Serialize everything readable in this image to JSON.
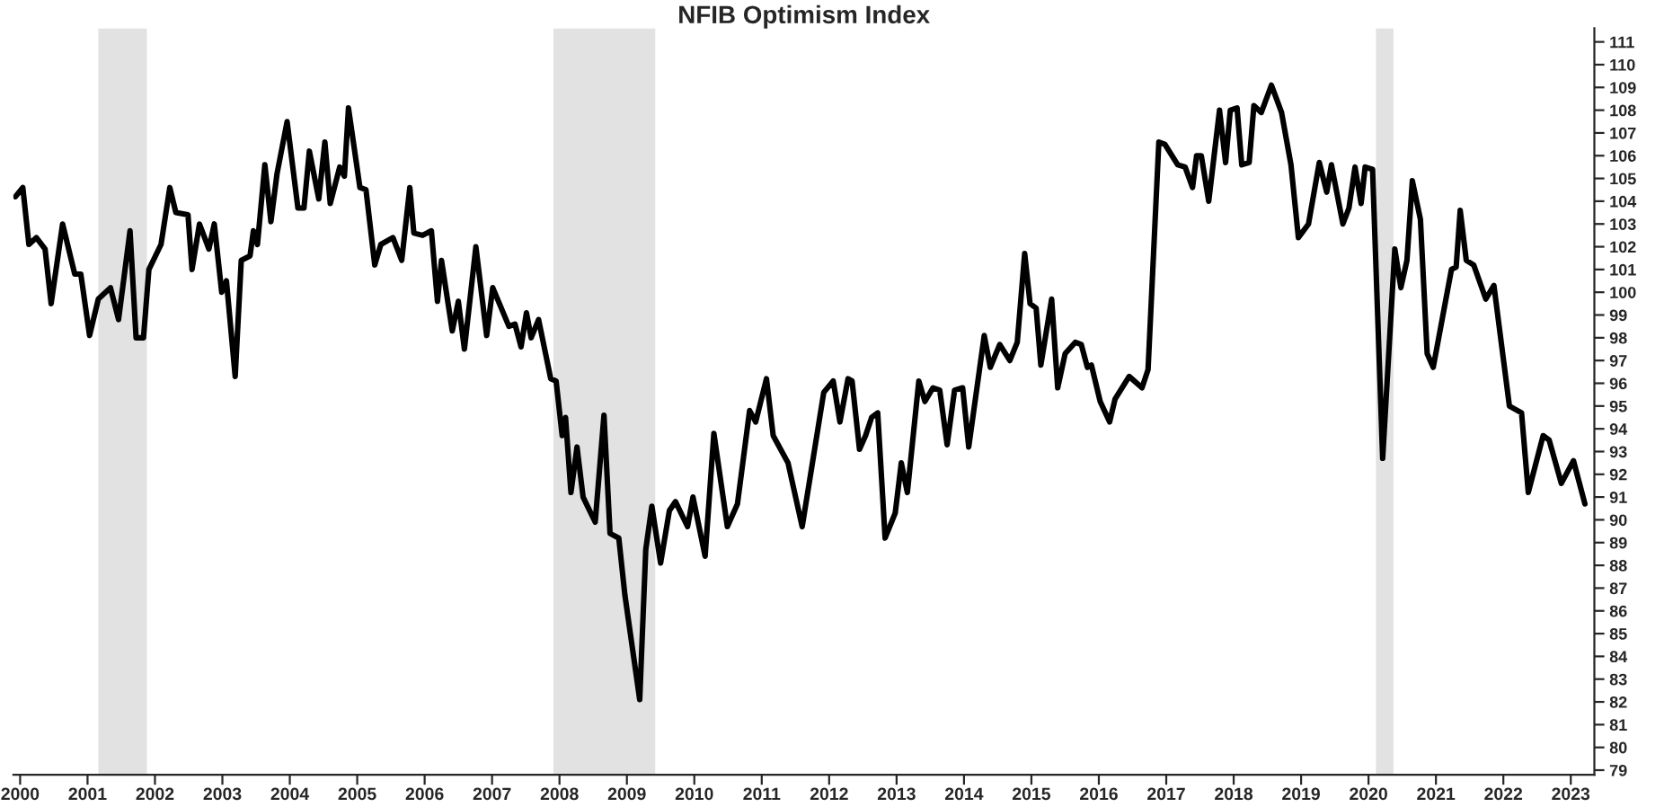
{
  "chart_data": {
    "type": "line",
    "title": "NFIB Optimism Index",
    "xlim": [
      1999.9,
      2023.35
    ],
    "xticks": [
      2000,
      2001,
      2002,
      2003,
      2004,
      2005,
      2006,
      2007,
      2008,
      2009,
      2010,
      2011,
      2012,
      2013,
      2014,
      2015,
      2016,
      2017,
      2018,
      2019,
      2020,
      2021,
      2022,
      2023
    ],
    "ylim": [
      78.8,
      111.6
    ],
    "yticks": [
      79,
      80,
      81,
      82,
      83,
      84,
      85,
      86,
      87,
      88,
      89,
      90,
      91,
      92,
      93,
      94,
      95,
      96,
      97,
      98,
      99,
      100,
      101,
      102,
      103,
      104,
      105,
      106,
      107,
      108,
      109,
      110,
      111
    ],
    "grid": false,
    "legend": false,
    "marker": "none",
    "line_style": "solid",
    "bands": [
      {
        "axis": "x",
        "from": 2001.16,
        "to": 2001.88,
        "color": "#e2e2e2"
      },
      {
        "axis": "x",
        "from": 2007.91,
        "to": 2009.42,
        "color": "#e2e2e2"
      },
      {
        "axis": "x",
        "from": 2020.11,
        "to": 2020.37,
        "color": "#e2e2e2"
      }
    ],
    "series": [
      {
        "color": "#000000",
        "x": [
          1999.93,
          2000.04,
          2000.13,
          2000.24,
          2000.37,
          2000.46,
          2000.63,
          2000.81,
          2000.9,
          2001.03,
          2001.16,
          2001.34,
          2001.46,
          2001.63,
          2001.72,
          2001.83,
          2001.91,
          2002.09,
          2002.22,
          2002.31,
          2002.49,
          2002.55,
          2002.66,
          2002.8,
          2002.88,
          2002.99,
          2003.06,
          2003.19,
          2003.28,
          2003.41,
          2003.46,
          2003.52,
          2003.63,
          2003.72,
          2003.81,
          2003.96,
          2004.12,
          2004.21,
          2004.29,
          2004.43,
          2004.52,
          2004.6,
          2004.74,
          2004.81,
          2004.87,
          2005.04,
          2005.13,
          2005.26,
          2005.35,
          2005.53,
          2005.66,
          2005.78,
          2005.84,
          2005.97,
          2006.1,
          2006.19,
          2006.25,
          2006.41,
          2006.5,
          2006.59,
          2006.76,
          2006.92,
          2007.01,
          2007.25,
          2007.34,
          2007.43,
          2007.51,
          2007.58,
          2007.69,
          2007.87,
          2007.95,
          2008.04,
          2008.09,
          2008.17,
          2008.26,
          2008.35,
          2008.53,
          2008.66,
          2008.75,
          2008.88,
          2008.97,
          2009.19,
          2009.28,
          2009.37,
          2009.5,
          2009.63,
          2009.72,
          2009.9,
          2009.98,
          2010.16,
          2010.29,
          2010.49,
          2010.64,
          2010.82,
          2010.91,
          2011.07,
          2011.17,
          2011.39,
          2011.6,
          2011.92,
          2012.06,
          2012.16,
          2012.28,
          2012.34,
          2012.45,
          2012.54,
          2012.63,
          2012.72,
          2012.83,
          2012.98,
          2013.07,
          2013.16,
          2013.33,
          2013.42,
          2013.54,
          2013.64,
          2013.75,
          2013.86,
          2013.98,
          2014.07,
          2014.3,
          2014.39,
          2014.53,
          2014.68,
          2014.79,
          2014.9,
          2014.98,
          2015.07,
          2015.14,
          2015.3,
          2015.39,
          2015.5,
          2015.65,
          2015.74,
          2015.83,
          2015.89,
          2016.02,
          2016.16,
          2016.24,
          2016.45,
          2016.64,
          2016.73,
          2016.89,
          2016.98,
          2017.17,
          2017.28,
          2017.39,
          2017.45,
          2017.52,
          2017.63,
          2017.79,
          2017.88,
          2017.95,
          2018.05,
          2018.12,
          2018.23,
          2018.3,
          2018.41,
          2018.56,
          2018.71,
          2018.85,
          2018.96,
          2019.11,
          2019.27,
          2019.38,
          2019.45,
          2019.62,
          2019.71,
          2019.8,
          2019.89,
          2019.95,
          2020.06,
          2020.21,
          2020.39,
          2020.48,
          2020.57,
          2020.65,
          2020.77,
          2020.87,
          2020.96,
          2021.23,
          2021.3,
          2021.36,
          2021.45,
          2021.56,
          2021.74,
          2021.86,
          2022.09,
          2022.27,
          2022.37,
          2022.59,
          2022.68,
          2022.86,
          2023.04,
          2023.21
        ],
        "values": [
          104.2,
          104.6,
          102.1,
          102.4,
          101.9,
          99.5,
          103.0,
          100.8,
          100.8,
          98.1,
          99.7,
          100.2,
          98.8,
          102.7,
          98.0,
          98.0,
          101.0,
          102.1,
          104.6,
          103.5,
          103.4,
          101.0,
          103.0,
          101.9,
          103.0,
          100.0,
          100.5,
          96.3,
          101.4,
          101.6,
          102.7,
          102.1,
          105.6,
          103.1,
          105.2,
          107.5,
          103.7,
          103.7,
          106.2,
          104.1,
          106.6,
          103.9,
          105.5,
          105.1,
          108.1,
          104.6,
          104.5,
          101.2,
          102.1,
          102.4,
          101.4,
          104.6,
          102.6,
          102.5,
          102.7,
          99.6,
          101.4,
          98.3,
          99.6,
          97.5,
          102.0,
          98.1,
          100.2,
          98.5,
          98.6,
          97.6,
          99.1,
          98.0,
          98.8,
          96.2,
          96.1,
          93.7,
          94.5,
          91.2,
          93.2,
          91.0,
          89.9,
          94.6,
          89.4,
          89.2,
          86.7,
          82.1,
          88.7,
          90.6,
          88.1,
          90.4,
          90.8,
          89.7,
          91.0,
          88.4,
          93.8,
          89.7,
          90.7,
          94.8,
          94.3,
          96.2,
          93.7,
          92.5,
          89.7,
          95.6,
          96.1,
          94.3,
          96.2,
          96.1,
          93.1,
          93.7,
          94.5,
          94.7,
          89.2,
          90.3,
          92.5,
          91.2,
          96.1,
          95.2,
          95.8,
          95.7,
          93.3,
          95.7,
          95.8,
          93.2,
          98.1,
          96.7,
          97.7,
          97.0,
          97.8,
          101.7,
          99.5,
          99.3,
          96.8,
          99.7,
          95.8,
          97.3,
          97.8,
          97.7,
          96.7,
          96.8,
          95.2,
          94.3,
          95.3,
          96.3,
          95.8,
          96.6,
          106.6,
          106.5,
          105.6,
          105.5,
          104.6,
          106.0,
          106.0,
          104.0,
          108.0,
          105.7,
          108.0,
          108.1,
          105.6,
          105.7,
          108.2,
          107.9,
          109.1,
          107.9,
          105.6,
          102.4,
          103.0,
          105.7,
          104.4,
          105.6,
          103.0,
          103.7,
          105.5,
          103.9,
          105.5,
          105.4,
          92.7,
          101.9,
          100.2,
          101.4,
          104.9,
          103.2,
          97.3,
          96.7,
          101.0,
          101.1,
          103.6,
          101.4,
          101.2,
          99.7,
          100.3,
          95.0,
          94.7,
          91.2,
          93.7,
          93.5,
          91.6,
          92.6,
          90.7
        ]
      }
    ]
  }
}
